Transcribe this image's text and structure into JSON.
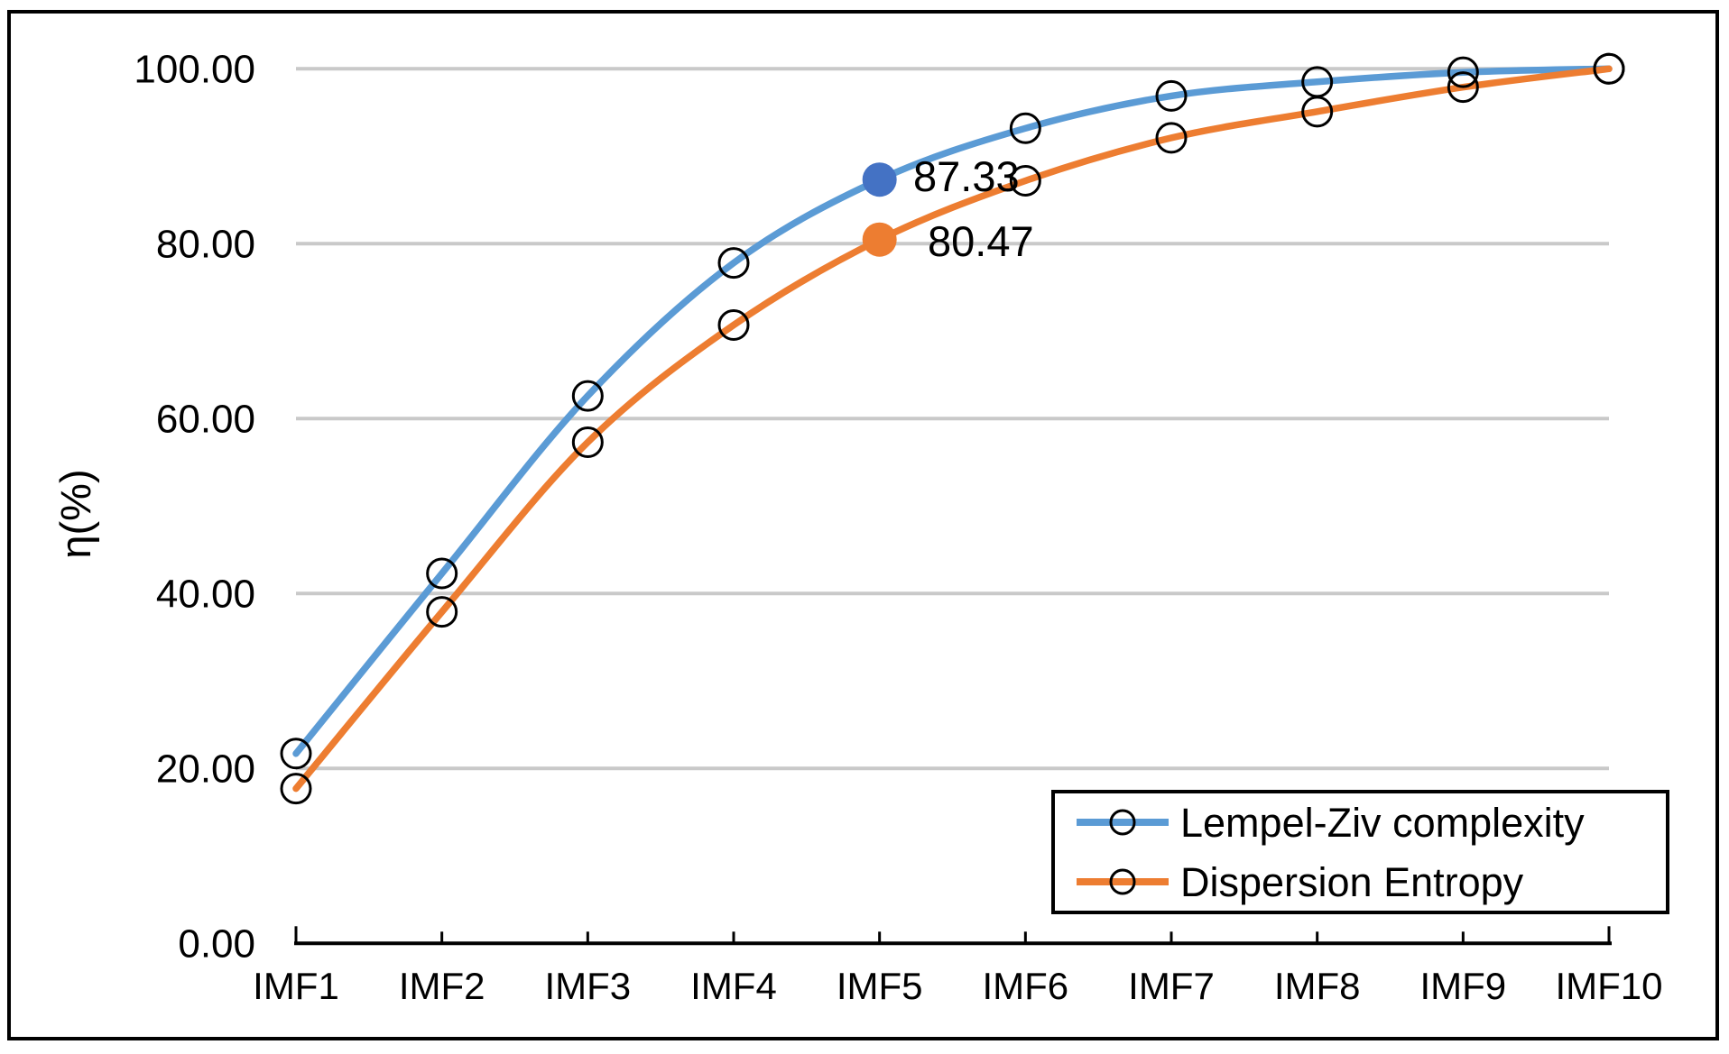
{
  "figure": {
    "background": "#ffffff",
    "border_color": "#000000"
  },
  "colors": {
    "gridline": "#c9c9c9",
    "axis": "#000000",
    "text": "#000000",
    "series_blue": "#5B9BD5",
    "series_orange": "#ED7D31",
    "highlight_blue_marker": "#4472C4",
    "highlight_orange_marker": "#ED7D31"
  },
  "chart_data": {
    "type": "line",
    "title": "",
    "xlabel": "",
    "ylabel": "η(%)",
    "categories": [
      "IMF1",
      "IMF2",
      "IMF3",
      "IMF4",
      "IMF5",
      "IMF6",
      "IMF7",
      "IMF8",
      "IMF9",
      "IMF10"
    ],
    "y_ticks": [
      "0.00",
      "20.00",
      "40.00",
      "60.00",
      "80.00",
      "100.00"
    ],
    "ylim": [
      0,
      100
    ],
    "grid": "horizontal",
    "legend_position": "inside-bottom-right",
    "line_style": "smooth",
    "marker": "open-circle",
    "series": [
      {
        "name": "Lempel-Ziv complexity",
        "color": "#5B9BD5",
        "values": [
          21.7,
          42.3,
          62.6,
          77.8,
          87.33,
          93.2,
          96.9,
          98.5,
          99.6,
          100.0
        ],
        "highlight": {
          "index": 4,
          "label": "87.33",
          "marker_color": "#4472C4"
        }
      },
      {
        "name": "Dispersion Entropy",
        "color": "#ED7D31",
        "values": [
          17.7,
          37.9,
          57.3,
          70.7,
          80.47,
          87.2,
          92.1,
          95.1,
          97.9,
          100.0
        ],
        "highlight": {
          "index": 4,
          "label": "80.47",
          "marker_color": "#ED7D31"
        }
      }
    ],
    "annotations": [
      {
        "text": "87.33",
        "series": "Lempel-Ziv complexity",
        "category": "IMF5"
      },
      {
        "text": "80.47",
        "series": "Dispersion Entropy",
        "category": "IMF5"
      }
    ]
  }
}
